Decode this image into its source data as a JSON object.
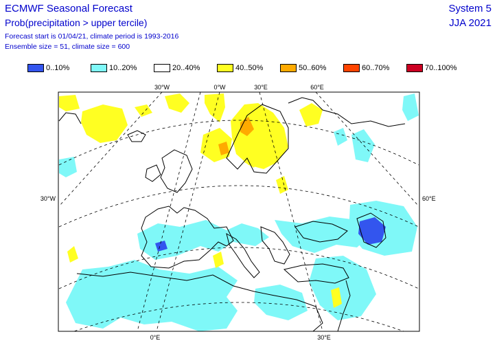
{
  "header": {
    "title": "ECMWF Seasonal Forecast",
    "subtitle": "Prob(precipitation > upper tercile)",
    "forecast_info": "Forecast start is 01/04/21, climate period is 1993-2016",
    "ensemble_info": "Ensemble size = 51, climate size = 600",
    "system": "System 5",
    "season": "JJA 2021"
  },
  "legend": [
    {
      "label": "0..10%",
      "color": "#3355ee"
    },
    {
      "label": "10..20%",
      "color": "#7ff8f8"
    },
    {
      "label": "20..40%",
      "color": "#ffffff"
    },
    {
      "label": "40..50%",
      "color": "#ffff22"
    },
    {
      "label": "50..60%",
      "color": "#ffaa00"
    },
    {
      "label": "60..70%",
      "color": "#ff4400"
    },
    {
      "label": "70..100%",
      "color": "#cc0022"
    }
  ],
  "map": {
    "top_labels": [
      "30°W",
      "0°W",
      "30°E",
      "60°E"
    ],
    "left_label": "30°W",
    "right_label": "60°E",
    "bottom_labels": [
      "0°E",
      "30°E"
    ]
  }
}
